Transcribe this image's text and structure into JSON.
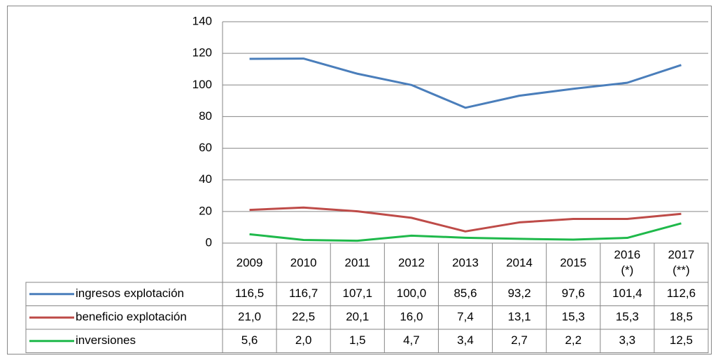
{
  "chart_data": {
    "type": "line",
    "categories": [
      "2009",
      "2010",
      "2011",
      "2012",
      "2013",
      "2014",
      "2015",
      "2016 (*)",
      "2017 (**)"
    ],
    "ylim": [
      0,
      140
    ],
    "yticks": [
      0,
      20,
      40,
      60,
      80,
      100,
      120,
      140
    ],
    "grid": true,
    "series": [
      {
        "name": "ingresos explotación",
        "color": "#4a7ebb",
        "values": [
          116.5,
          116.7,
          107.1,
          100.0,
          85.6,
          93.2,
          97.6,
          101.4,
          112.6
        ],
        "value_labels": [
          "116,5",
          "116,7",
          "107,1",
          "100,0",
          "85,6",
          "93,2",
          "97,6",
          "101,4",
          "112,6"
        ]
      },
      {
        "name": "beneficio explotación",
        "color": "#be4b48",
        "values": [
          21.0,
          22.5,
          20.1,
          16.0,
          7.4,
          13.1,
          15.3,
          15.3,
          18.5
        ],
        "value_labels": [
          "21,0",
          "22,5",
          "20,1",
          "16,0",
          "7,4",
          "13,1",
          "15,3",
          "15,3",
          "18,5"
        ]
      },
      {
        "name": "inversiones",
        "color": "#1fb94b",
        "values": [
          5.6,
          2.0,
          1.5,
          4.7,
          3.4,
          2.7,
          2.2,
          3.3,
          12.5
        ],
        "value_labels": [
          "5,6",
          "2,0",
          "1,5",
          "4,7",
          "3,4",
          "2,7",
          "2,2",
          "3,3",
          "12,5"
        ]
      }
    ]
  }
}
